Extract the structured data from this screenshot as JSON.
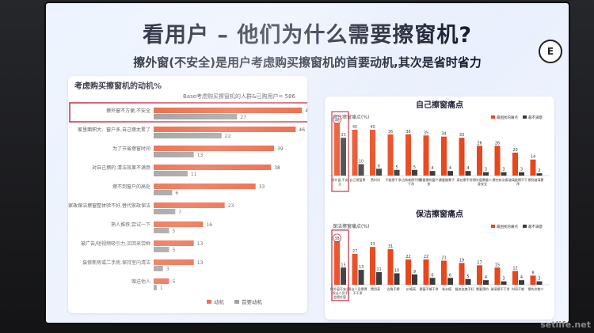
{
  "header": {
    "title": "看用户 – 他们为什么需要擦窗机?",
    "subtitle": "擦外窗(不安全)是用户考虑购买擦窗机的首要动机,其次是省时省力",
    "logo_text": "E"
  },
  "watermark": "setlife.net",
  "colors": {
    "primary": "#e8461c",
    "secondary": "#8a8a8a",
    "highlight_box": "#c0142c"
  },
  "chart_data": [
    {
      "type": "bar",
      "orientation": "horizontal",
      "title": "考虑购买擦窗机的动机%",
      "subtitle": "Base考虑购买擦窗机的人群&已购用户= 586",
      "categories": [
        "擦外窗不方便,不安全",
        "家里面积大、窗户多,自己擦太累了",
        "为了节省擦窗时间",
        "对自己擦的 清洁效果不满意",
        "擦不到窗户的高处",
        "家政保洁擦窗整体验不好,替代家政保洁",
        "熟人推荐,尝试一下",
        "被广告/短视频吸引力,买回来尝鲜",
        "装修新房或二手房,保持室内清洁",
        "赠送他人"
      ],
      "series": [
        {
          "name": "动机",
          "values": [
            48,
            46,
            39,
            38,
            33,
            23,
            16,
            13,
            13,
            5
          ]
        },
        {
          "name": "首要动机",
          "values": [
            27,
            22,
            13,
            11,
            6,
            7,
            5,
            5,
            3,
            1
          ]
        }
      ],
      "highlighted_category": "擦外窗不方便,不安全",
      "legend": "bottom-right"
    },
    {
      "type": "bar",
      "title": "自己擦窗痛点",
      "subtitle": "自己擦窗痛点(%)",
      "legend_labels": [
        "最困扰的痛点",
        "最不满意"
      ],
      "categories": [
        "擦外窗,不安全",
        "自己擦窗累",
        "费时间",
        "不能擦干净",
        "边角难擦不擦干净",
        "需要擦的窗户多",
        "需要搬凳子",
        "高处擦不到",
        "擦外窗需要人身安全",
        "擦完有水痕",
        "玻璃脏擦不干净",
        "擦到玻璃累"
      ],
      "series": [
        {
          "name": "最困扰的痛点",
          "values": [
            46,
            40,
            40,
            36,
            36,
            35,
            34,
            33,
            26,
            26,
            20,
            14
          ]
        },
        {
          "name": "最不满意",
          "values": [
            33,
            10,
            6,
            5,
            5,
            4,
            4,
            4,
            3,
            3,
            3,
            2
          ]
        }
      ],
      "highlighted_category": "擦外窗,不安全"
    },
    {
      "type": "bar",
      "title": "保洁擦窗痛点",
      "subtitle": "保洁擦窗痛点(%)",
      "legend_labels": [
        "最困扰的痛点",
        "最不满意"
      ],
      "categories": [
        "擦外窗不安全,保洁人员不会擦外窗",
        "保洁人员擦得不干净",
        "费用高",
        "边角不擦",
        "价格高",
        "擦窗不够干净",
        "有水痕",
        "服务态度不好",
        "需要预约",
        "玻璃擦不干净",
        "时间不够",
        "擦的次数少"
      ],
      "series": [
        {
          "name": "最困扰的痛点",
          "values": [
            38,
            27,
            33,
            31,
            22,
            22,
            21,
            19,
            17,
            15,
            12,
            8
          ]
        },
        {
          "name": "最不满意",
          "values": [
            15,
            13,
            11,
            10,
            9,
            6,
            6,
            5,
            4,
            3,
            4,
            3
          ]
        }
      ],
      "highlighted_category": "擦外窗不安全,保洁人员不会擦外窗"
    }
  ]
}
